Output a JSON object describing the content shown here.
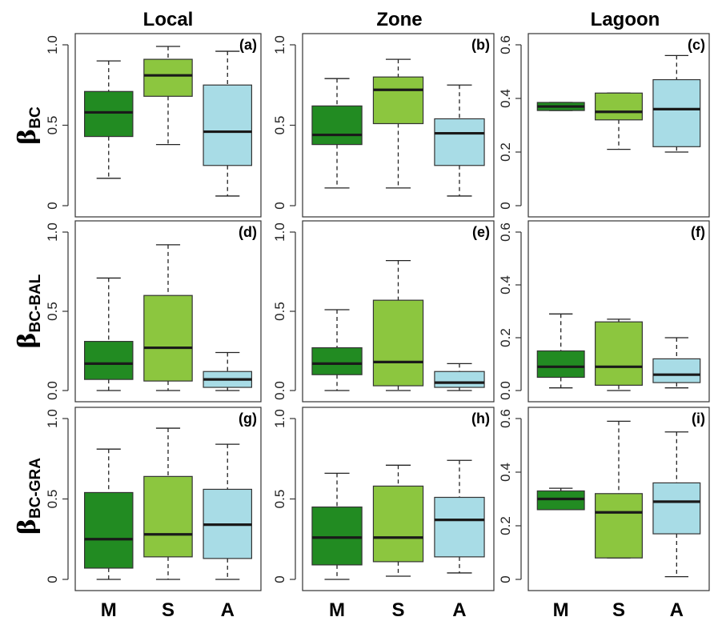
{
  "colors": {
    "M": "#228B22",
    "S": "#8CC63F",
    "A": "#A8DCE6",
    "median": "#1a1a1a"
  },
  "chart_data": {
    "type": "box",
    "column_titles": [
      "Local",
      "Zone",
      "Lagoon"
    ],
    "row_labels": [
      {
        "main": "β",
        "sub": "BC"
      },
      {
        "main": "β",
        "sub": "BC-BAL"
      },
      {
        "main": "β",
        "sub": "BC-GRA"
      }
    ],
    "categories": [
      "M",
      "S",
      "A"
    ],
    "grid": false,
    "panels": [
      {
        "label": "(a)",
        "row": 0,
        "col": 0,
        "ylim": [
          0,
          1.0
        ],
        "yticks": [
          "0",
          "0.5",
          "1.0"
        ],
        "yticks_values": [
          0,
          0.5,
          1.0
        ],
        "boxes": [
          {
            "category": "M",
            "min": 0.17,
            "q1": 0.43,
            "median": 0.58,
            "q3": 0.71,
            "max": 0.9
          },
          {
            "category": "S",
            "min": 0.38,
            "q1": 0.68,
            "median": 0.81,
            "q3": 0.91,
            "max": 0.99
          },
          {
            "category": "A",
            "min": 0.06,
            "q1": 0.25,
            "median": 0.46,
            "q3": 0.75,
            "max": 0.96
          }
        ]
      },
      {
        "label": "(b)",
        "row": 0,
        "col": 1,
        "ylim": [
          0,
          1.0
        ],
        "yticks": [
          "0",
          "0.5",
          "1.0"
        ],
        "yticks_values": [
          0,
          0.5,
          1.0
        ],
        "boxes": [
          {
            "category": "M",
            "min": 0.11,
            "q1": 0.38,
            "median": 0.44,
            "q3": 0.62,
            "max": 0.79
          },
          {
            "category": "S",
            "min": 0.11,
            "q1": 0.51,
            "median": 0.72,
            "q3": 0.8,
            "max": 0.91
          },
          {
            "category": "A",
            "min": 0.06,
            "q1": 0.25,
            "median": 0.45,
            "q3": 0.54,
            "max": 0.75
          }
        ]
      },
      {
        "label": "(c)",
        "row": 0,
        "col": 2,
        "ylim": [
          0,
          0.6
        ],
        "yticks": [
          "0",
          "0.2",
          "0.4",
          "0.6"
        ],
        "yticks_values": [
          0,
          0.2,
          0.4,
          0.6
        ],
        "boxes": [
          {
            "category": "M",
            "min": 0.355,
            "q1": 0.355,
            "median": 0.37,
            "q3": 0.385,
            "max": 0.385
          },
          {
            "category": "S",
            "min": 0.21,
            "q1": 0.32,
            "median": 0.35,
            "q3": 0.42,
            "max": 0.42
          },
          {
            "category": "A",
            "min": 0.2,
            "q1": 0.22,
            "median": 0.36,
            "q3": 0.47,
            "max": 0.56
          }
        ]
      },
      {
        "label": "(d)",
        "row": 1,
        "col": 0,
        "ylim": [
          0,
          1.0
        ],
        "yticks": [
          "0.0",
          "0.5",
          "1.0"
        ],
        "yticks_values": [
          0,
          0.5,
          1.0
        ],
        "boxes": [
          {
            "category": "M",
            "min": 0.0,
            "q1": 0.07,
            "median": 0.17,
            "q3": 0.31,
            "max": 0.71
          },
          {
            "category": "S",
            "min": 0.0,
            "q1": 0.06,
            "median": 0.27,
            "q3": 0.6,
            "max": 0.92
          },
          {
            "category": "A",
            "min": 0.0,
            "q1": 0.02,
            "median": 0.07,
            "q3": 0.12,
            "max": 0.24
          }
        ]
      },
      {
        "label": "(e)",
        "row": 1,
        "col": 1,
        "ylim": [
          0,
          1.0
        ],
        "yticks": [
          "0.0",
          "0.5",
          "1.0"
        ],
        "yticks_values": [
          0,
          0.5,
          1.0
        ],
        "boxes": [
          {
            "category": "M",
            "min": 0.0,
            "q1": 0.1,
            "median": 0.17,
            "q3": 0.27,
            "max": 0.51
          },
          {
            "category": "S",
            "min": 0.0,
            "q1": 0.03,
            "median": 0.18,
            "q3": 0.57,
            "max": 0.82
          },
          {
            "category": "A",
            "min": 0.0,
            "q1": 0.02,
            "median": 0.05,
            "q3": 0.12,
            "max": 0.17
          }
        ]
      },
      {
        "label": "(f)",
        "row": 1,
        "col": 2,
        "ylim": [
          0,
          0.6
        ],
        "yticks": [
          "0.0",
          "0.2",
          "0.4",
          "0.6"
        ],
        "yticks_values": [
          0,
          0.2,
          0.4,
          0.6
        ],
        "boxes": [
          {
            "category": "M",
            "min": 0.01,
            "q1": 0.05,
            "median": 0.09,
            "q3": 0.15,
            "max": 0.29
          },
          {
            "category": "S",
            "min": 0.0,
            "q1": 0.02,
            "median": 0.09,
            "q3": 0.26,
            "max": 0.27
          },
          {
            "category": "A",
            "min": 0.01,
            "q1": 0.03,
            "median": 0.06,
            "q3": 0.12,
            "max": 0.2
          }
        ]
      },
      {
        "label": "(g)",
        "row": 2,
        "col": 0,
        "ylim": [
          0,
          1.0
        ],
        "yticks": [
          "0",
          "0.5",
          "1.0"
        ],
        "yticks_values": [
          0,
          0.5,
          1.0
        ],
        "boxes": [
          {
            "category": "M",
            "min": 0.0,
            "q1": 0.07,
            "median": 0.25,
            "q3": 0.54,
            "max": 0.81
          },
          {
            "category": "S",
            "min": 0.0,
            "q1": 0.14,
            "median": 0.28,
            "q3": 0.64,
            "max": 0.94
          },
          {
            "category": "A",
            "min": 0.0,
            "q1": 0.13,
            "median": 0.34,
            "q3": 0.56,
            "max": 0.84
          }
        ]
      },
      {
        "label": "(h)",
        "row": 2,
        "col": 1,
        "ylim": [
          0,
          1.0
        ],
        "yticks": [
          "0",
          "0.5",
          "1.0"
        ],
        "yticks_values": [
          0,
          0.5,
          1.0
        ],
        "boxes": [
          {
            "category": "M",
            "min": 0.0,
            "q1": 0.09,
            "median": 0.26,
            "q3": 0.45,
            "max": 0.66
          },
          {
            "category": "S",
            "min": 0.02,
            "q1": 0.11,
            "median": 0.26,
            "q3": 0.58,
            "max": 0.71
          },
          {
            "category": "A",
            "min": 0.04,
            "q1": 0.14,
            "median": 0.37,
            "q3": 0.51,
            "max": 0.74
          }
        ]
      },
      {
        "label": "(i)",
        "row": 2,
        "col": 2,
        "ylim": [
          0,
          0.6
        ],
        "yticks": [
          "0",
          "0.2",
          "0.4",
          "0.6"
        ],
        "yticks_values": [
          0,
          0.2,
          0.4,
          0.6
        ],
        "boxes": [
          {
            "category": "M",
            "min": 0.26,
            "q1": 0.26,
            "median": 0.3,
            "q3": 0.33,
            "max": 0.34
          },
          {
            "category": "S",
            "min": 0.08,
            "q1": 0.08,
            "median": 0.25,
            "q3": 0.32,
            "max": 0.59
          },
          {
            "category": "A",
            "min": 0.01,
            "q1": 0.17,
            "median": 0.29,
            "q3": 0.36,
            "max": 0.55
          }
        ]
      }
    ]
  }
}
